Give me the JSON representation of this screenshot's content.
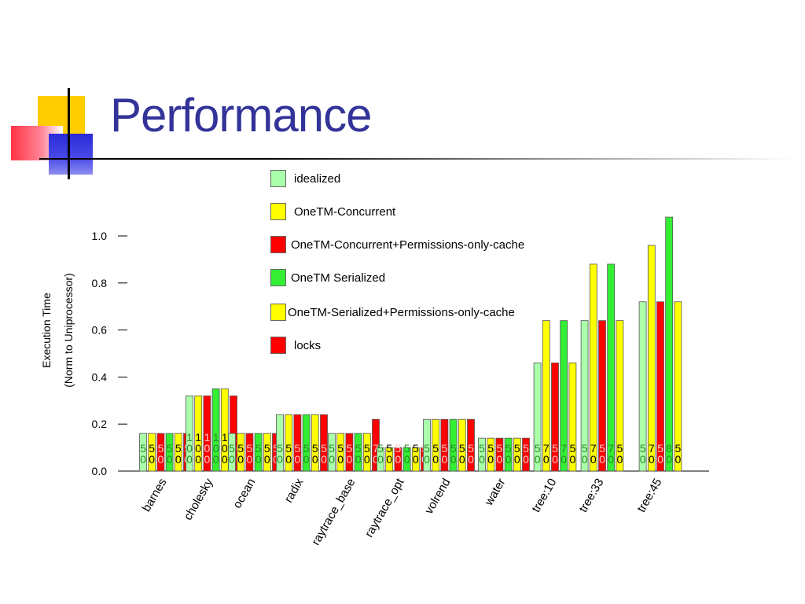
{
  "title": "Performance",
  "chart_data": {
    "type": "bar",
    "ylabel_lines": [
      "Execution Time",
      "(Norm to Uniprocessor)"
    ],
    "ylim": [
      0.0,
      1.0
    ],
    "yticks": [
      "0.0",
      "0.2",
      "0.4",
      "0.6",
      "0.8",
      "1.0"
    ],
    "categories": [
      "barnes",
      "cholesky",
      "ocean",
      "radix",
      "raytrace_base",
      "raytrace_opt",
      "volrend",
      "water",
      "tree:10",
      "tree:33",
      "tree:45"
    ],
    "series": [
      {
        "name": "idealized",
        "color": "#aaffaa",
        "values": [
          0.16,
          0.32,
          0.16,
          0.24,
          0.16,
          0.1,
          0.22,
          0.14,
          0.46,
          0.64,
          0.72
        ],
        "labels": [
          "5\n0",
          "1\n0\n0",
          "5\n0",
          "5\n0",
          "5\n0",
          "5\n0",
          "5\n0",
          "5\n0",
          "5\n0",
          "5\n0",
          "5\n0"
        ]
      },
      {
        "name": "OneTM-Concurrent",
        "color": "#ffff00",
        "values": [
          0.16,
          0.32,
          0.16,
          0.24,
          0.16,
          0.1,
          0.22,
          0.14,
          0.64,
          0.88,
          0.96
        ],
        "labels": [
          "5\n0",
          "1\n0\n0",
          "5\n0",
          "5\n0",
          "5\n0",
          "5\n0",
          "5\n0",
          "5\n0",
          "7\n0",
          "7\n0",
          "7\n0"
        ]
      },
      {
        "name": "OneTM-Concurrent+Permissions-only-cache",
        "color": "#ff0000",
        "values": [
          0.16,
          0.32,
          0.16,
          0.24,
          0.16,
          0.1,
          0.22,
          0.14,
          0.46,
          0.64,
          0.72
        ],
        "labels": [
          "5\n0",
          "1\n0\n0",
          "5\n0",
          "5\n0",
          "5\n0",
          "5\n0",
          "5\n0",
          "5\n0",
          "5\n0",
          "5\n0",
          "5\n0"
        ]
      },
      {
        "name": "OneTM Serialized",
        "color": "#33ee33",
        "values": [
          0.16,
          0.35,
          0.16,
          0.24,
          0.16,
          0.1,
          0.22,
          0.14,
          0.64,
          0.88,
          1.08
        ],
        "labels": [
          "5\n0",
          "1\n0\n0",
          "5\n0",
          "5\n0",
          "5\n0",
          "5\n0",
          "5\n0",
          "5\n0",
          "7\n0",
          "7\n0",
          "8\n0"
        ]
      },
      {
        "name": "OneTM-Serialized+Permissions-only-cache",
        "color": "#ffff00",
        "values": [
          0.16,
          0.35,
          0.16,
          0.24,
          0.16,
          0.1,
          0.22,
          0.14,
          0.46,
          0.64,
          0.72
        ],
        "labels": [
          "5\n0",
          "1\n0\n0",
          "5\n0",
          "5\n0",
          "5\n0",
          "5\n0",
          "5\n0",
          "5\n0",
          "5\n0",
          "5\n0",
          "5\n0"
        ]
      },
      {
        "name": "locks",
        "color": "#ff0000",
        "values": [
          0.16,
          0.32,
          0.16,
          0.24,
          0.22,
          0.1,
          0.22,
          0.14,
          null,
          null,
          null
        ],
        "labels": [
          "5\n0",
          "1\n0\n0",
          "5\n0",
          "5\n0",
          "7\n0",
          "5\n0",
          "5\n0",
          "5\n0",
          null,
          null,
          null
        ]
      }
    ],
    "legend_position": "top-center",
    "grid": false
  }
}
